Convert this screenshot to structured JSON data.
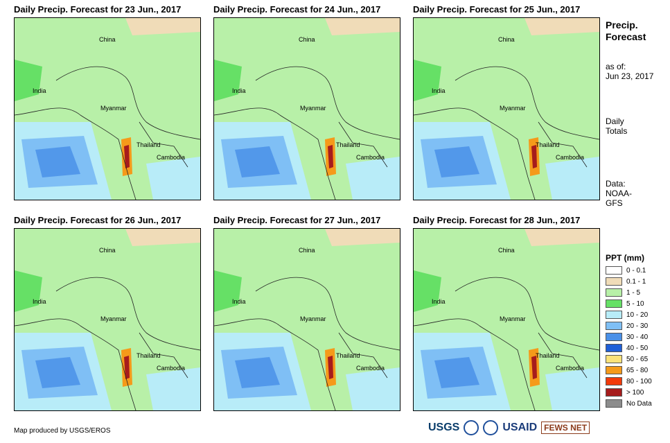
{
  "panels": [
    {
      "title": "Daily Precip. Forecast for 23 Jun., 2017"
    },
    {
      "title": "Daily Precip. Forecast for 24 Jun., 2017"
    },
    {
      "title": "Daily Precip. Forecast for 25 Jun., 2017"
    },
    {
      "title": "Daily Precip. Forecast for 26 Jun., 2017"
    },
    {
      "title": "Daily Precip. Forecast for 27 Jun., 2017"
    },
    {
      "title": "Daily Precip. Forecast for 28 Jun., 2017"
    }
  ],
  "map_labels": {
    "china": "China",
    "india": "India",
    "myanmar": "Myanmar",
    "thailand": "Thailand",
    "cambodia": "Cambodia"
  },
  "side": {
    "title_line1": "Precip.",
    "title_line2": "Forecast",
    "asof_line1": "as of:",
    "asof_line2": "Jun 23, 2017",
    "totals_line1": "Daily",
    "totals_line2": "Totals",
    "data_line1": "Data:",
    "data_line2": "NOAA-",
    "data_line3": "GFS"
  },
  "legend": {
    "title": "PPT (mm)",
    "items": [
      {
        "label": "0 - 0.1",
        "color": "#ffffff"
      },
      {
        "label": "0.1 - 1",
        "color": "#f0dcb8"
      },
      {
        "label": "1 - 5",
        "color": "#b8f0a8"
      },
      {
        "label": "5 - 10",
        "color": "#66e066"
      },
      {
        "label": "10 - 20",
        "color": "#b8ecf8"
      },
      {
        "label": "20 - 30",
        "color": "#7fbff5"
      },
      {
        "label": "30 - 40",
        "color": "#4a90e8"
      },
      {
        "label": "40 - 50",
        "color": "#1f5fd8"
      },
      {
        "label": "50 - 65",
        "color": "#fbe27a"
      },
      {
        "label": "65 - 80",
        "color": "#f59a1a"
      },
      {
        "label": "80 - 100",
        "color": "#f23a0a"
      },
      {
        "label": "> 100",
        "color": "#a61c1c"
      },
      {
        "label": "No Data",
        "color": "#8c8c8c"
      }
    ]
  },
  "credit": "Map produced by USGS/EROS",
  "logos": {
    "usgs": "USGS",
    "usaid": "USAID",
    "fews": "FEWS NET"
  }
}
